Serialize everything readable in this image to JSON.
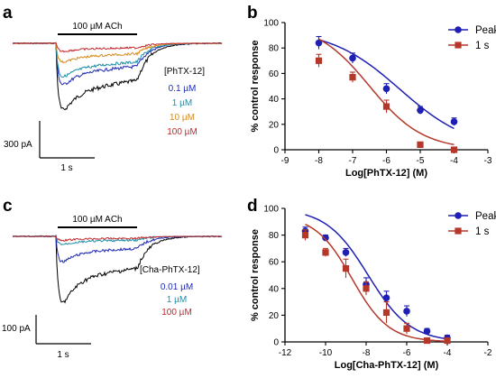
{
  "panel_labels": [
    "a",
    "b",
    "c",
    "d"
  ],
  "trace_a": {
    "stimulus_label": "100 µM ACh",
    "legend_title": "[PhTX-12]",
    "concentrations": [
      {
        "label": "0.1 µM",
        "color": "#1f2ab4",
        "depth": 0.62
      },
      {
        "label": "1 µM",
        "color": "#1a8ea8",
        "depth": 0.5
      },
      {
        "label": "10 µM",
        "color": "#d68a1a",
        "depth": 0.28
      },
      {
        "label": "100 µM",
        "color": "#c0282d",
        "depth": 0.12
      }
    ],
    "control_color": "#000000",
    "scale_y_label": "300 pA",
    "scale_x_label": "1 s"
  },
  "trace_c": {
    "stimulus_label": "100 µM ACh",
    "legend_title": "[Cha-PhTX-12]",
    "concentrations": [
      {
        "label": "0.01 µM",
        "color": "#1f2ab4",
        "depth": 0.38
      },
      {
        "label": "1 µM",
        "color": "#1a8ea8",
        "depth": 0.12
      },
      {
        "label": "100 µM",
        "color": "#c0282d",
        "depth": 0.06
      }
    ],
    "control_color": "#000000",
    "scale_y_label": "100 pA",
    "scale_x_label": "1 s"
  },
  "chart_data": [
    {
      "type": "scatter",
      "panel": "b",
      "xlabel": "Log[PhTX-12] (M)",
      "ylabel": "% control response",
      "xlim": [
        -9,
        -3
      ],
      "ylim": [
        0,
        100
      ],
      "xticks": [
        -9,
        -8,
        -7,
        -6,
        -5,
        -4,
        -3
      ],
      "yticks": [
        0,
        20,
        40,
        60,
        80,
        100
      ],
      "legend_position": "top-right",
      "series": [
        {
          "name": "Peak",
          "color": "#1f1fb4",
          "marker": "circle",
          "x": [
            -8,
            -7,
            -6,
            -5,
            -4
          ],
          "y": [
            84,
            72,
            48,
            31,
            22
          ],
          "err": [
            5,
            4,
            4,
            3,
            3
          ]
        },
        {
          "name": "1 s",
          "color": "#b5372a",
          "marker": "square",
          "x": [
            -8,
            -7,
            -6,
            -5,
            -4
          ],
          "y": [
            70,
            57,
            34,
            4,
            0
          ],
          "err": [
            5,
            4,
            5,
            1,
            1
          ]
        }
      ]
    },
    {
      "type": "scatter",
      "panel": "d",
      "xlabel": "Log[Cha-PhTX-12] (M)",
      "ylabel": "% control response",
      "xlim": [
        -12,
        -2
      ],
      "ylim": [
        0,
        100
      ],
      "xticks": [
        -12,
        -10,
        -8,
        -6,
        -4,
        -2
      ],
      "yticks": [
        0,
        20,
        40,
        60,
        80,
        100
      ],
      "legend_position": "top-right",
      "series": [
        {
          "name": "Peak",
          "color": "#1f1fb4",
          "marker": "circle",
          "x": [
            -11,
            -10,
            -9,
            -8,
            -7,
            -6,
            -5,
            -4
          ],
          "y": [
            83,
            78,
            67,
            43,
            33,
            23,
            8,
            3
          ],
          "err": [
            3,
            2,
            3,
            5,
            5,
            4,
            2,
            2
          ]
        },
        {
          "name": "1 s",
          "color": "#b5372a",
          "marker": "square",
          "x": [
            -11,
            -10,
            -9,
            -8,
            -7,
            -6,
            -5,
            -4
          ],
          "y": [
            80,
            67,
            55,
            40,
            22,
            10,
            1,
            1
          ],
          "err": [
            4,
            3,
            7,
            5,
            8,
            4,
            2,
            2
          ]
        }
      ]
    }
  ]
}
